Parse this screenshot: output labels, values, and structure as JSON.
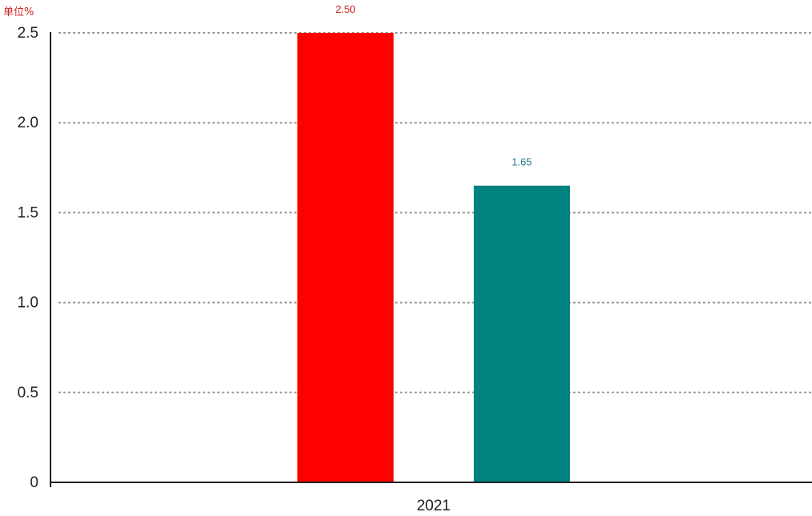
{
  "chart_data": {
    "type": "bar",
    "unit_label": "单位%",
    "categories": [
      "2021"
    ],
    "series": [
      {
        "values": [
          2.5
        ],
        "label": "2.50",
        "color": "#ff0000",
        "label_color": "#cc2222"
      },
      {
        "values": [
          1.65
        ],
        "label": "1.65",
        "color": "#00827f",
        "label_color": "#1f7a8c"
      }
    ],
    "ylim": [
      0,
      2.5
    ],
    "yticks": [
      "0",
      "0.5",
      "1.0",
      "1.5",
      "2.0",
      "2.5"
    ],
    "ytick_values": [
      0,
      0.5,
      1.0,
      1.5,
      2.0,
      2.5
    ],
    "grid": true,
    "colors": {
      "unit_label": "#cc2222",
      "axis": "#222222",
      "grid": "#9a9a9a"
    }
  }
}
